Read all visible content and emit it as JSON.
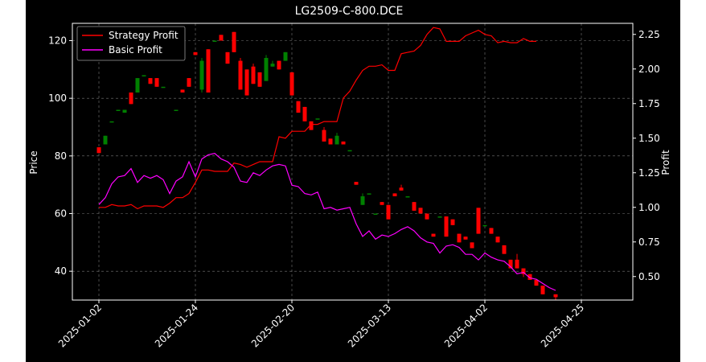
{
  "chart_data": {
    "type": "candlestick-with-lines",
    "title": "LG2509-C-800.DCE",
    "ylabel_left": "Price",
    "ylabel_right": "Profit",
    "ylim_left": [
      30,
      126
    ],
    "ylim_right": [
      0.33,
      2.33
    ],
    "yticks_left": [
      40,
      60,
      80,
      100,
      120
    ],
    "yticks_right": [
      0.5,
      0.75,
      1.0,
      1.25,
      1.5,
      1.75,
      2.0,
      2.25
    ],
    "yticks_right_labels": [
      "0.50",
      "0.75",
      "1.00",
      "1.25",
      "1.50",
      "1.75",
      "2.00",
      "2.25"
    ],
    "x_tick_labels": [
      "2025-01-02",
      "2025-01-24",
      "2025-02-20",
      "2025-03-13",
      "2025-04-02",
      "2025-04-25"
    ],
    "x_tick_indices": [
      0,
      15,
      30,
      45,
      60,
      75
    ],
    "grid": true,
    "legend_position": "top-left",
    "legend": [
      {
        "name": "Strategy Profit",
        "color": "#ff0000"
      },
      {
        "name": "Basic Profit",
        "color": "#ff00ff"
      }
    ],
    "colors": {
      "up": "#008000",
      "down": "#ff0000",
      "background": "#000000"
    },
    "candles": [
      [
        83,
        81,
        83,
        81
      ],
      [
        84,
        87,
        87,
        84
      ],
      [
        92,
        92,
        92,
        92
      ],
      [
        96,
        96,
        96,
        96
      ],
      [
        95,
        96,
        96,
        95
      ],
      [
        102,
        98,
        102,
        98
      ],
      [
        102,
        107,
        107,
        102
      ],
      [
        108,
        108,
        108,
        108
      ],
      [
        107,
        105,
        107,
        105
      ],
      [
        107,
        104,
        107,
        104
      ],
      [
        104,
        104,
        104,
        104
      ],
      [
        96,
        96,
        96,
        96
      ],
      [
        103,
        102,
        103,
        102
      ],
      [
        107,
        104,
        107,
        104
      ],
      [
        116,
        115,
        116,
        115
      ],
      [
        103,
        113,
        114,
        102
      ],
      [
        117,
        102,
        117,
        102
      ],
      [
        120,
        120,
        120,
        120
      ],
      [
        122,
        120,
        122,
        120
      ],
      [
        116,
        112,
        116,
        112
      ],
      [
        123,
        116,
        123,
        116
      ],
      [
        113,
        103,
        114,
        103
      ],
      [
        110,
        101,
        110,
        101
      ],
      [
        111,
        105,
        112,
        105
      ],
      [
        109,
        104,
        109,
        104
      ],
      [
        106,
        114,
        115,
        106
      ],
      [
        111,
        112,
        113,
        111
      ],
      [
        113,
        110,
        113,
        110
      ],
      [
        113,
        116,
        116,
        113
      ],
      [
        109,
        101,
        109,
        101
      ],
      [
        99,
        95,
        99,
        95
      ],
      [
        97,
        92,
        97,
        92
      ],
      [
        92,
        89,
        92,
        89
      ],
      [
        93,
        93,
        93,
        93
      ],
      [
        89,
        85,
        90,
        85
      ],
      [
        86,
        84,
        86,
        84
      ],
      [
        84,
        87,
        88,
        84
      ],
      [
        85,
        84,
        85,
        84
      ],
      [
        82,
        82,
        82,
        82
      ],
      [
        71,
        70,
        71,
        70
      ],
      [
        63,
        66,
        67,
        63
      ],
      [
        67,
        67,
        67,
        67
      ],
      [
        60,
        60,
        60,
        60
      ],
      [
        64,
        63,
        64,
        63
      ],
      [
        63,
        58,
        63,
        58
      ],
      [
        67,
        66,
        67,
        66
      ],
      [
        69,
        68,
        70,
        68
      ],
      [
        66,
        66,
        66,
        66
      ],
      [
        64,
        61,
        64,
        61
      ],
      [
        62,
        60,
        62,
        60
      ],
      [
        60,
        58,
        60,
        58
      ],
      [
        53,
        52,
        53,
        52
      ],
      [
        59,
        59,
        59,
        59
      ],
      [
        59,
        52,
        59,
        52
      ],
      [
        58,
        56,
        58,
        56
      ],
      [
        53,
        50,
        53,
        50
      ],
      [
        52,
        51,
        52,
        51
      ],
      [
        50,
        48,
        50,
        48
      ],
      [
        62,
        53,
        62,
        53
      ],
      [
        56,
        56,
        56,
        56
      ],
      [
        55,
        53,
        55,
        53
      ],
      [
        52,
        50,
        52,
        50
      ],
      [
        49,
        46,
        49,
        46
      ],
      [
        44,
        41,
        44,
        41
      ],
      [
        44,
        41,
        46,
        41
      ],
      [
        41,
        39,
        41,
        38
      ],
      [
        39,
        37,
        39,
        37
      ],
      [
        37,
        35,
        37,
        35
      ],
      [
        35,
        32,
        35,
        32
      ],
      [
        32,
        31,
        32,
        30
      ]
    ],
    "candle_x": [
      0,
      1,
      2,
      3,
      4,
      5,
      6,
      7,
      8,
      9,
      10,
      12,
      13,
      14,
      15,
      16,
      17,
      18,
      19,
      20,
      21,
      22,
      23,
      24,
      25,
      26,
      27,
      28,
      29,
      30,
      31,
      32,
      33,
      34,
      35,
      36,
      37,
      38,
      39,
      40,
      41,
      42,
      43,
      44,
      45,
      46,
      47,
      48,
      49,
      50,
      51,
      52,
      53,
      54,
      55,
      56,
      57,
      58,
      59,
      60,
      61,
      62,
      63,
      64,
      65,
      66,
      67,
      68,
      69,
      71
    ],
    "strategy_profit": [
      1.0,
      1.0,
      1.02,
      1.01,
      1.01,
      1.02,
      0.99,
      1.01,
      1.01,
      1.01,
      1.0,
      1.03,
      1.07,
      1.07,
      1.1,
      1.18,
      1.27,
      1.27,
      1.26,
      1.26,
      1.26,
      1.32,
      1.31,
      1.29,
      1.31,
      1.33,
      1.33,
      1.33,
      1.51,
      1.5,
      1.55,
      1.55,
      1.55,
      1.6,
      1.6,
      1.62,
      1.62,
      1.62,
      1.79,
      1.84,
      1.92,
      1.99,
      2.02,
      2.02,
      2.03,
      1.99,
      1.99,
      2.11,
      2.12,
      2.13,
      2.17,
      2.25,
      2.3,
      2.29,
      2.2,
      2.2,
      2.2,
      2.24,
      2.26,
      2.28,
      2.25,
      2.24,
      2.19,
      2.2,
      2.19,
      2.19,
      2.22,
      2.2,
      2.2
    ],
    "strategy_profit_start": 0,
    "basic_profit": [
      1.02,
      1.07,
      1.17,
      1.22,
      1.23,
      1.28,
      1.18,
      1.23,
      1.21,
      1.23,
      1.2,
      1.1,
      1.19,
      1.22,
      1.33,
      1.22,
      1.35,
      1.38,
      1.39,
      1.35,
      1.33,
      1.29,
      1.19,
      1.18,
      1.25,
      1.23,
      1.27,
      1.3,
      1.31,
      1.3,
      1.16,
      1.15,
      1.1,
      1.09,
      1.11,
      0.99,
      1.0,
      0.98,
      0.99,
      1.0,
      0.88,
      0.79,
      0.83,
      0.77,
      0.8,
      0.79,
      0.81,
      0.84,
      0.86,
      0.83,
      0.78,
      0.75,
      0.74,
      0.67,
      0.72,
      0.73,
      0.71,
      0.66,
      0.66,
      0.62,
      0.67,
      0.64,
      0.62,
      0.61,
      0.57,
      0.52,
      0.53,
      0.49,
      0.48,
      0.45,
      0.42,
      0.4
    ],
    "basic_profit_start": 0
  }
}
